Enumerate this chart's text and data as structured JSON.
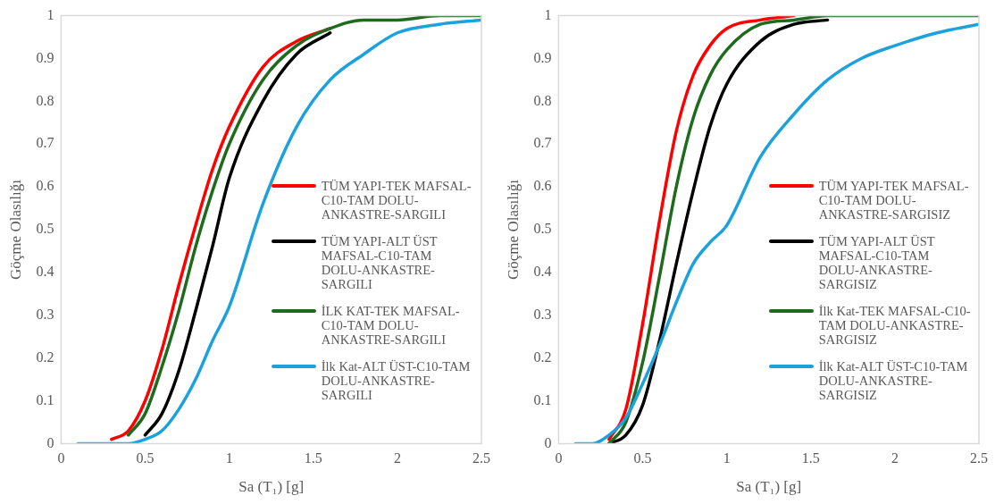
{
  "chart_data": [
    {
      "type": "line",
      "xlabel": "Sa (T₁) [g]",
      "ylabel": "Göçme Olasılığı",
      "x": [
        0.1,
        0.2,
        0.3,
        0.4,
        0.5,
        0.6,
        0.7,
        0.8,
        0.9,
        1.0,
        1.2,
        1.4,
        1.6,
        1.8,
        2.0,
        2.25,
        2.5
      ],
      "xlim": [
        0,
        2.5
      ],
      "xticks": [
        0,
        0.5,
        1,
        1.5,
        2,
        2.5
      ],
      "ylim": [
        0,
        1
      ],
      "yticks": [
        0,
        0.1,
        0.2,
        0.3,
        0.4,
        0.5,
        0.6,
        0.7,
        0.8,
        0.9,
        1
      ],
      "grid": false,
      "legend": "right",
      "marker": "none",
      "line_style": "solid",
      "series": [
        {
          "name": "TÜM YAPI-TEK MAFSAL-C10-TAM DOLU-ANKASTRE-SARGILI",
          "color": "#ff0000",
          "values": [
            null,
            null,
            0.01,
            0.03,
            0.1,
            0.22,
            0.37,
            0.51,
            0.64,
            0.74,
            0.88,
            0.94,
            0.97,
            null,
            null,
            null,
            null
          ]
        },
        {
          "name": "TÜM YAPI-ALT ÜST MAFSAL-C10-TAM DOLU-ANKASTRE-SARGILI",
          "color": "#000000",
          "values": [
            null,
            null,
            null,
            null,
            0.02,
            0.07,
            0.17,
            0.31,
            0.46,
            0.62,
            0.8,
            0.91,
            0.96,
            null,
            null,
            null,
            null
          ]
        },
        {
          "name": "İLK KAT-TEK MAFSAL-C10-TAM DOLU-ANKASTRE-SARGILI",
          "color": "#1e6b1e",
          "values": [
            null,
            null,
            null,
            0.02,
            0.07,
            0.18,
            0.31,
            0.46,
            0.59,
            0.7,
            0.85,
            0.93,
            0.97,
            0.99,
            0.99,
            1,
            1
          ]
        },
        {
          "name": "İlk Kat-ALT ÜST-C10-TAM DOLU-ANKASTRE-SARGILI",
          "color": "#1ba1db",
          "values": [
            0,
            0,
            0,
            0,
            0.01,
            0.03,
            0.08,
            0.15,
            0.24,
            0.32,
            0.56,
            0.74,
            0.85,
            0.91,
            0.96,
            0.98,
            0.99
          ]
        }
      ]
    },
    {
      "type": "line",
      "xlabel": "Sa (T₁) [g]",
      "ylabel": "Göçme Olasılığı",
      "x": [
        0.1,
        0.2,
        0.3,
        0.4,
        0.5,
        0.6,
        0.7,
        0.8,
        0.9,
        1.0,
        1.2,
        1.4,
        1.6,
        1.8,
        2.0,
        2.25,
        2.5
      ],
      "xlim": [
        0,
        2.5
      ],
      "xticks": [
        0,
        0.5,
        1,
        1.5,
        2,
        2.5
      ],
      "ylim": [
        0,
        1
      ],
      "yticks": [
        0,
        0.1,
        0.2,
        0.3,
        0.4,
        0.5,
        0.6,
        0.7,
        0.8,
        0.9,
        1
      ],
      "grid": false,
      "legend": "right",
      "marker": "none",
      "line_style": "solid",
      "series": [
        {
          "name": "TÜM YAPI-TEK MAFSAL-C10-TAM DOLU-ANKASTRE-SARGISIZ",
          "color": "#ff0000",
          "values": [
            null,
            null,
            0.01,
            0.08,
            0.28,
            0.52,
            0.73,
            0.86,
            0.93,
            0.97,
            0.99,
            1,
            null,
            null,
            null,
            null,
            null
          ]
        },
        {
          "name": "TÜM YAPI-ALT ÜST MAFSAL-C10-TAM DOLU-ANKASTRE-SARGISIZ",
          "color": "#000000",
          "values": [
            null,
            null,
            0,
            0.02,
            0.09,
            0.24,
            0.42,
            0.59,
            0.74,
            0.84,
            0.94,
            0.98,
            0.99,
            null,
            null,
            null,
            null
          ]
        },
        {
          "name": "İlk Kat-TEK MAFSAL-C10-TAM DOLU-ANKASTRE-SARGISIZ",
          "color": "#1e6b1e",
          "values": [
            null,
            null,
            0,
            0.05,
            0.19,
            0.39,
            0.6,
            0.76,
            0.86,
            0.92,
            0.98,
            0.99,
            1,
            1,
            1,
            1,
            1
          ]
        },
        {
          "name": "İlk Kat-ALT ÜST-C10-TAM DOLU-ANKASTRE-SARGISIZ",
          "color": "#1ba1db",
          "values": [
            0,
            0,
            0.02,
            0.06,
            0.14,
            0.23,
            0.33,
            0.42,
            0.47,
            0.51,
            0.67,
            0.77,
            0.85,
            0.9,
            0.93,
            0.96,
            0.98
          ]
        }
      ]
    }
  ]
}
